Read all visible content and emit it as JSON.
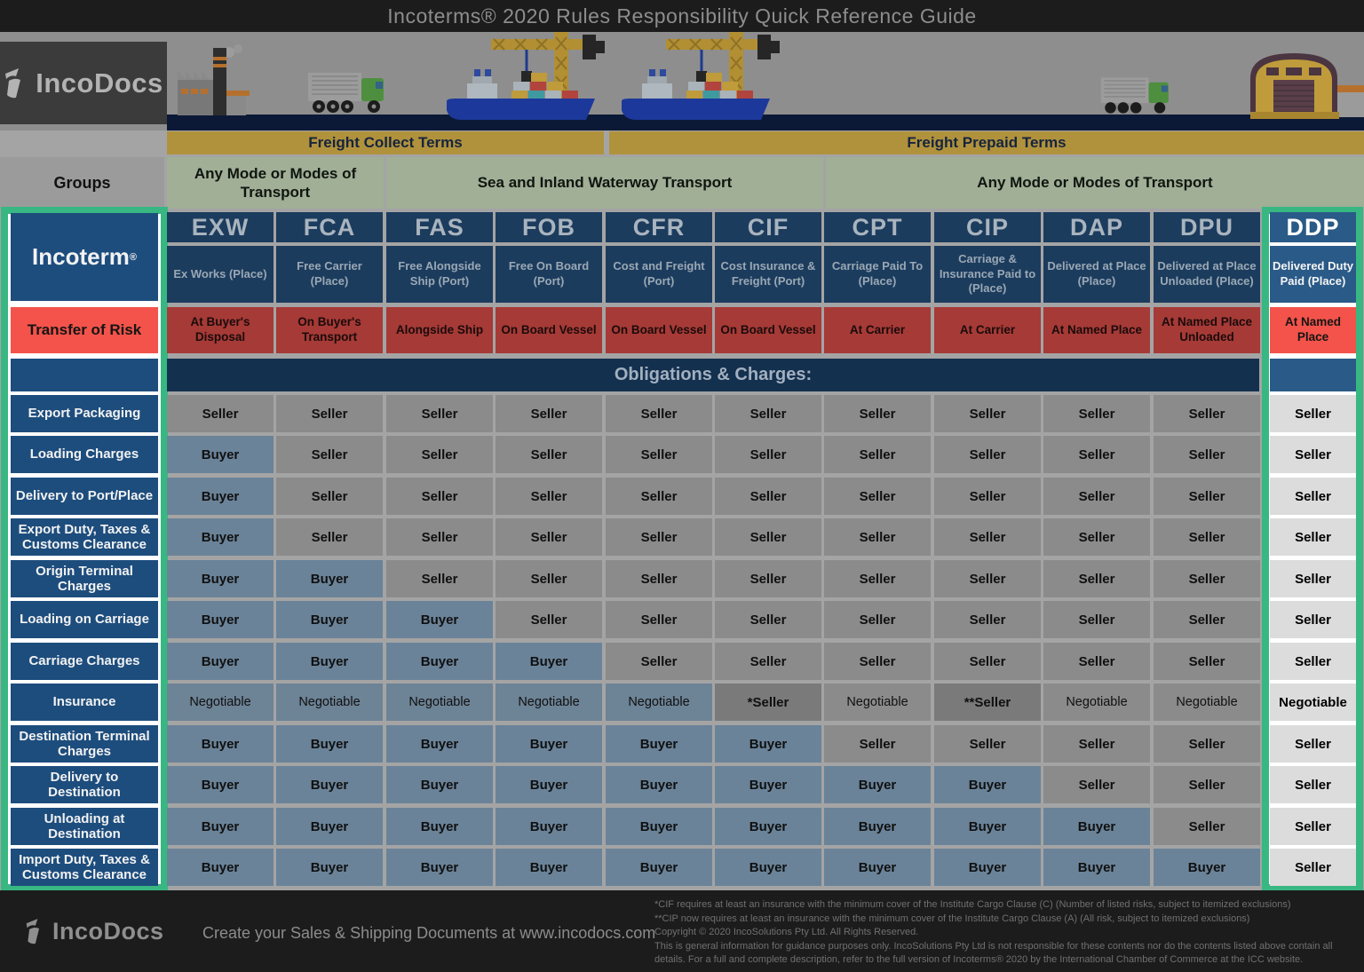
{
  "title": "Incoterms® 2020 Rules Responsibility Quick Reference Guide",
  "brand": {
    "logo_text": "IncoDocs",
    "tagline": "Create your Sales & Shipping Documents at www.incodocs.com"
  },
  "banners": {
    "freight_collect": "Freight Collect Terms",
    "freight_prepaid": "Freight Prepaid Terms"
  },
  "groups": {
    "header": "Groups",
    "cells": [
      {
        "label": "Any Mode or Modes of Transport",
        "span": 2
      },
      {
        "label": "Sea and Inland Waterway Transport",
        "span": 4
      },
      {
        "label": "Any Mode or Modes of Transport",
        "span": 5
      }
    ]
  },
  "left_headers": {
    "incoterm": "Incoterm",
    "registered_mark": "®",
    "transfer_of_risk": "Transfer of Risk"
  },
  "obligations_title": "Obligations & Charges:",
  "columns": [
    {
      "code": "EXW",
      "name": "Ex Works (Place)",
      "risk": "At Buyer's Disposal",
      "highlighted": false
    },
    {
      "code": "FCA",
      "name": "Free Carrier (Place)",
      "risk": "On Buyer's Transport",
      "highlighted": false
    },
    {
      "code": "FAS",
      "name": "Free Alongside Ship (Port)",
      "risk": "Alongside Ship",
      "highlighted": false
    },
    {
      "code": "FOB",
      "name": "Free On Board (Port)",
      "risk": "On Board Vessel",
      "highlighted": false
    },
    {
      "code": "CFR",
      "name": "Cost and Freight (Port)",
      "risk": "On Board Vessel",
      "highlighted": false
    },
    {
      "code": "CIF",
      "name": "Cost Insurance & Freight (Port)",
      "risk": "On Board Vessel",
      "highlighted": false
    },
    {
      "code": "CPT",
      "name": "Carriage Paid To (Place)",
      "risk": "At Carrier",
      "highlighted": false
    },
    {
      "code": "CIP",
      "name": "Carriage & Insurance Paid to (Place)",
      "risk": "At Carrier",
      "highlighted": false
    },
    {
      "code": "DAP",
      "name": "Delivered at Place (Place)",
      "risk": "At Named Place",
      "highlighted": false
    },
    {
      "code": "DPU",
      "name": "Delivered at Place Unloaded (Place)",
      "risk": "At Named Place Unloaded",
      "highlighted": false
    },
    {
      "code": "DDP",
      "name": "Delivered Duty Paid (Place)",
      "risk": "At Named Place",
      "highlighted": true
    }
  ],
  "rows": [
    {
      "label": "Export Packaging",
      "values": [
        "Seller",
        "Seller",
        "Seller",
        "Seller",
        "Seller",
        "Seller",
        "Seller",
        "Seller",
        "Seller",
        "Seller",
        "Seller"
      ]
    },
    {
      "label": "Loading Charges",
      "values": [
        "Buyer",
        "Seller",
        "Seller",
        "Seller",
        "Seller",
        "Seller",
        "Seller",
        "Seller",
        "Seller",
        "Seller",
        "Seller"
      ]
    },
    {
      "label": "Delivery to Port/Place",
      "values": [
        "Buyer",
        "Seller",
        "Seller",
        "Seller",
        "Seller",
        "Seller",
        "Seller",
        "Seller",
        "Seller",
        "Seller",
        "Seller"
      ]
    },
    {
      "label": "Export Duty, Taxes & Customs Clearance",
      "values": [
        "Buyer",
        "Seller",
        "Seller",
        "Seller",
        "Seller",
        "Seller",
        "Seller",
        "Seller",
        "Seller",
        "Seller",
        "Seller"
      ]
    },
    {
      "label": "Origin Terminal Charges",
      "values": [
        "Buyer",
        "Buyer",
        "Seller",
        "Seller",
        "Seller",
        "Seller",
        "Seller",
        "Seller",
        "Seller",
        "Seller",
        "Seller"
      ]
    },
    {
      "label": "Loading on Carriage",
      "values": [
        "Buyer",
        "Buyer",
        "Buyer",
        "Seller",
        "Seller",
        "Seller",
        "Seller",
        "Seller",
        "Seller",
        "Seller",
        "Seller"
      ]
    },
    {
      "label": "Carriage Charges",
      "values": [
        "Buyer",
        "Buyer",
        "Buyer",
        "Buyer",
        "Seller",
        "Seller",
        "Seller",
        "Seller",
        "Seller",
        "Seller",
        "Seller"
      ]
    },
    {
      "label": "Insurance",
      "values": [
        "Negotiable",
        "Negotiable",
        "Negotiable",
        "Negotiable",
        "Negotiable",
        "*Seller",
        "Negotiable",
        "**Seller",
        "Negotiable",
        "Negotiable",
        "Negotiable"
      ]
    },
    {
      "label": "Destination Terminal Charges",
      "values": [
        "Buyer",
        "Buyer",
        "Buyer",
        "Buyer",
        "Buyer",
        "Buyer",
        "Seller",
        "Seller",
        "Seller",
        "Seller",
        "Seller"
      ]
    },
    {
      "label": "Delivery to Destination",
      "values": [
        "Buyer",
        "Buyer",
        "Buyer",
        "Buyer",
        "Buyer",
        "Buyer",
        "Buyer",
        "Buyer",
        "Seller",
        "Seller",
        "Seller"
      ]
    },
    {
      "label": "Unloading at Destination",
      "values": [
        "Buyer",
        "Buyer",
        "Buyer",
        "Buyer",
        "Buyer",
        "Buyer",
        "Buyer",
        "Buyer",
        "Buyer",
        "Seller",
        "Seller"
      ]
    },
    {
      "label": "Import Duty, Taxes & Customs Clearance",
      "values": [
        "Buyer",
        "Buyer",
        "Buyer",
        "Buyer",
        "Buyer",
        "Buyer",
        "Buyer",
        "Buyer",
        "Buyer",
        "Buyer",
        "Seller"
      ]
    }
  ],
  "footnotes": [
    "*CIF requires at least an insurance with the minimum cover of the Institute Cargo Clause (C) (Number of listed risks, subject to itemized exclusions)",
    "**CIP now requires at least an insurance with the minimum cover of the Institute Cargo Clause (A) (All risk, subject to itemized exclusions)",
    "Copyright © 2020 IncoSolutions Pty Ltd. All Rights Reserved.",
    "This is general information for guidance purposes only.  IncoSolutions Pty Ltd is not responsible for these contents nor do the contents listed above contain all",
    "details.  For a full and complete description, refer to the full version of Incoterms® 2020 by the International Chamber of Commerce at the ICC website."
  ],
  "colors": {
    "accent_teal": "#38b783",
    "highlight_blue": "#1d4d7d",
    "highlight_red": "#f3534a",
    "header_navy": "#1c3c5e",
    "risk_red": "#a63a36",
    "seller_grey": "#8b8b8b",
    "buyer_blue": "#6a8399",
    "ddp_white": "#dcdcdc",
    "banner_gold": "#b0923c",
    "group_green": "#a0af96"
  }
}
